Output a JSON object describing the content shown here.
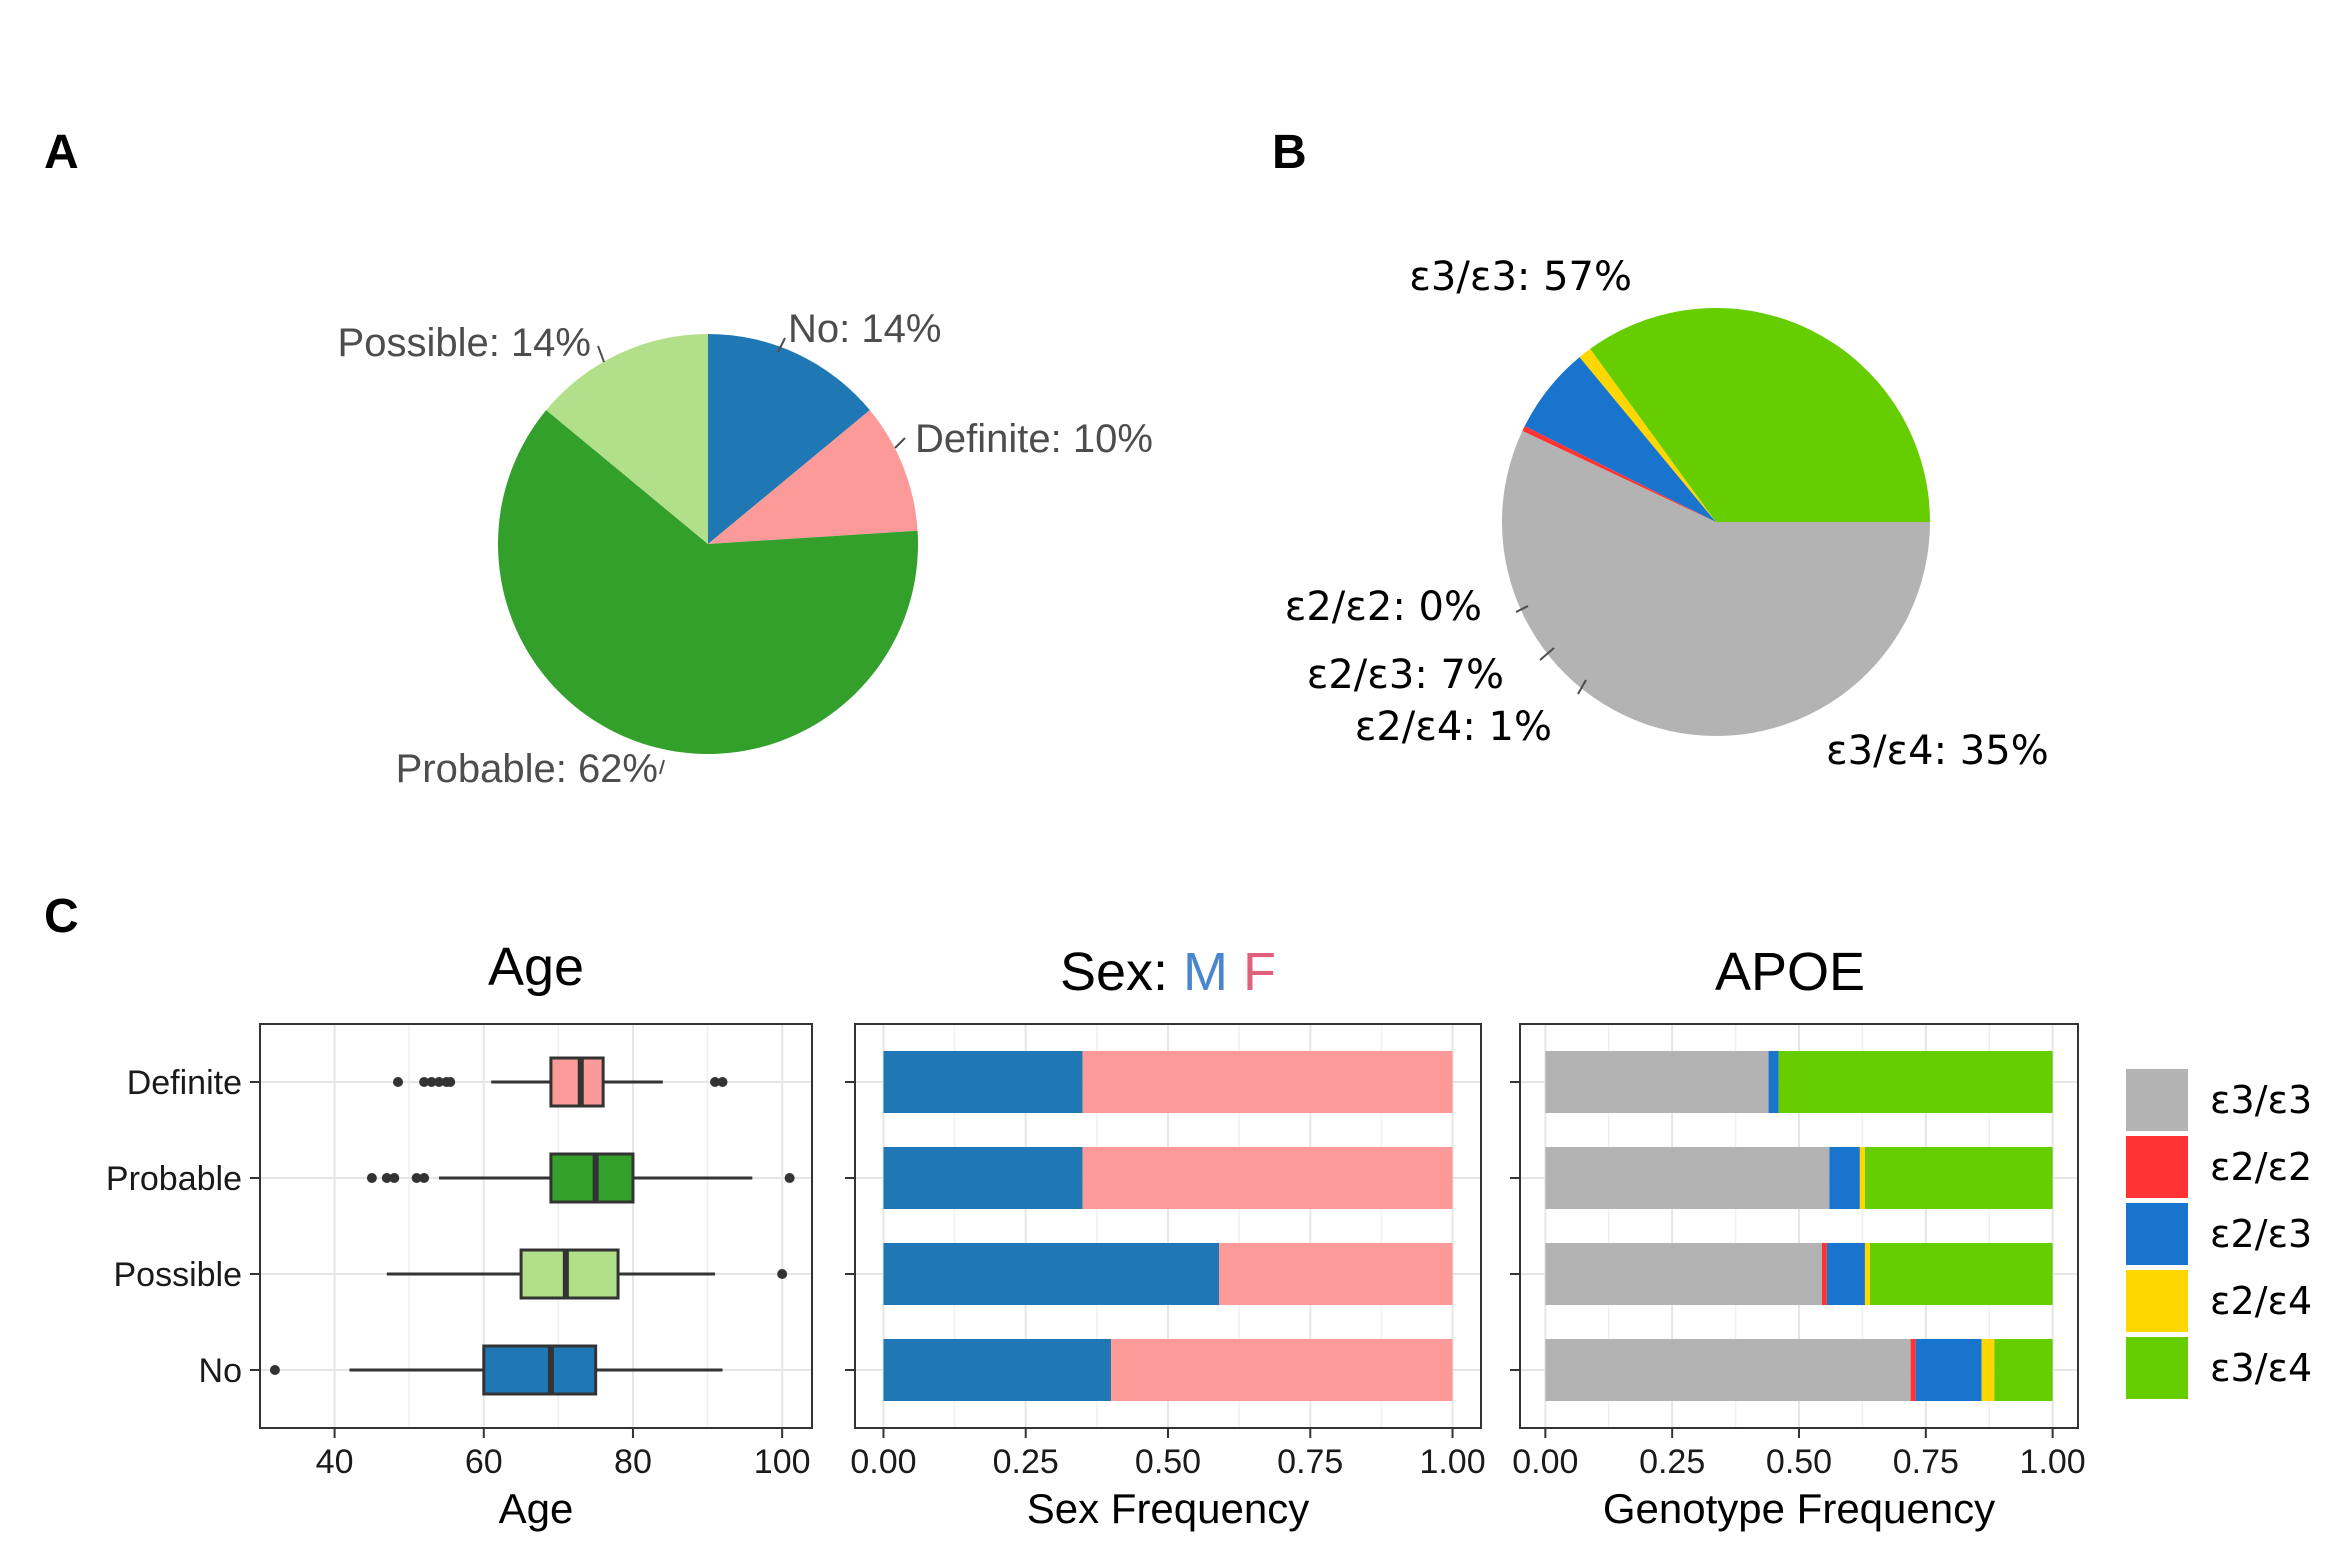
{
  "panels": {
    "a": "A",
    "b": "B",
    "c": "C"
  },
  "colors": {
    "Definite": "#FB9A99",
    "Probable": "#33A02C",
    "Possible": "#B2DF8A",
    "No": "#1F78B4",
    "M": "#1F78B4",
    "F": "#FB9A99",
    "sex_title_M": "#4A86D0",
    "sex_title_F": "#E0607E",
    "e3e3": "#B3B3B3",
    "e2e2": "#FF3333",
    "e2e3": "#1874CD",
    "e2e4": "#FFD700",
    "e3e4": "#66CD00"
  },
  "chart_data": [
    {
      "type": "pie",
      "panel": "A",
      "labels": [
        "No: 14%",
        "Definite: 10%",
        "Probable: 62%",
        "Possible: 14%"
      ],
      "slices": [
        {
          "name": "No",
          "value": 14,
          "color": "#1F78B4"
        },
        {
          "name": "Definite",
          "value": 10,
          "color": "#FB9A99"
        },
        {
          "name": "Probable",
          "value": 62,
          "color": "#33A02C"
        },
        {
          "name": "Possible",
          "value": 14,
          "color": "#B2DF8A"
        }
      ]
    },
    {
      "type": "pie",
      "panel": "B",
      "labels": [
        "ε3/ε3: 57%",
        "ε2/ε2: 0%",
        "ε2/ε3: 7%",
        "ε2/ε4: 1%",
        "ε3/ε4: 35%"
      ],
      "slices": [
        {
          "name": "ε3/ε3",
          "value": 57,
          "color": "#B3B3B3"
        },
        {
          "name": "ε2/ε2",
          "value": 0.4,
          "color": "#FF3333"
        },
        {
          "name": "ε2/ε3",
          "value": 6.6,
          "color": "#1874CD"
        },
        {
          "name": "ε2/ε4",
          "value": 1,
          "color": "#FFD700"
        },
        {
          "name": "ε3/ε4",
          "value": 35,
          "color": "#66CD00"
        }
      ]
    },
    {
      "type": "box",
      "panel": "C",
      "title": "Age",
      "xlabel": "Age",
      "xlim": [
        30,
        104
      ],
      "xticks": [
        40,
        60,
        80,
        100
      ],
      "xtick_labels": [
        "40",
        "60",
        "80",
        "100"
      ],
      "categories": [
        "Definite",
        "Probable",
        "Possible",
        "No"
      ],
      "boxes": [
        {
          "name": "Definite",
          "whisker_low": 61,
          "q1": 69,
          "median": 73,
          "q3": 76,
          "whisker_high": 84,
          "outliers": [
            48.5,
            52,
            53,
            54,
            55,
            55.5,
            91,
            92
          ],
          "color": "#FB9A99"
        },
        {
          "name": "Probable",
          "whisker_low": 54,
          "q1": 69,
          "median": 75,
          "q3": 80,
          "whisker_high": 96,
          "outliers": [
            45,
            47,
            48,
            51,
            52,
            101
          ],
          "color": "#33A02C"
        },
        {
          "name": "Possible",
          "whisker_low": 47,
          "q1": 65,
          "median": 71,
          "q3": 78,
          "whisker_high": 91,
          "outliers": [
            100
          ],
          "color": "#B2DF8A"
        },
        {
          "name": "No",
          "whisker_low": 42,
          "q1": 60,
          "median": 69,
          "q3": 75,
          "whisker_high": 92,
          "outliers": [
            32
          ],
          "color": "#1F78B4"
        }
      ]
    },
    {
      "type": "bar",
      "stacked": true,
      "orientation": "horizontal",
      "panel": "C",
      "title_prefix": "Sex: ",
      "title_M": "M",
      "title_F": "F",
      "xlabel": "Sex Frequency",
      "xlim": [
        -0.05,
        1.05
      ],
      "xticks": [
        0,
        0.25,
        0.5,
        0.75,
        1
      ],
      "xtick_labels": [
        "0.00",
        "0.25",
        "0.50",
        "0.75",
        "1.00"
      ],
      "categories": [
        "Definite",
        "Probable",
        "Possible",
        "No"
      ],
      "series": [
        {
          "name": "M",
          "values": [
            0.35,
            0.35,
            0.59,
            0.4
          ]
        },
        {
          "name": "F",
          "values": [
            0.65,
            0.65,
            0.41,
            0.6
          ]
        }
      ]
    },
    {
      "type": "bar",
      "stacked": true,
      "orientation": "horizontal",
      "panel": "C",
      "title": "APOE",
      "xlabel": "Genotype Frequency",
      "xlim": [
        -0.05,
        1.05
      ],
      "xticks": [
        0,
        0.25,
        0.5,
        0.75,
        1
      ],
      "xtick_labels": [
        "0.00",
        "0.25",
        "0.50",
        "0.75",
        "1.00"
      ],
      "categories": [
        "Definite",
        "Probable",
        "Possible",
        "No"
      ],
      "series": [
        {
          "name": "ε3/ε3",
          "values": [
            0.44,
            0.56,
            0.545,
            0.72
          ]
        },
        {
          "name": "ε2/ε2",
          "values": [
            0,
            0,
            0.01,
            0.01
          ]
        },
        {
          "name": "ε2/ε3",
          "values": [
            0.02,
            0.06,
            0.075,
            0.13
          ]
        },
        {
          "name": "ε2/ε4",
          "values": [
            0,
            0.01,
            0.01,
            0.025
          ]
        },
        {
          "name": "ε3/ε4",
          "values": [
            0.54,
            0.37,
            0.36,
            0.115
          ]
        }
      ],
      "legend": {
        "placement": "right",
        "entries": [
          "ε3/ε3",
          "ε2/ε2",
          "ε2/ε3",
          "ε2/ε4",
          "ε3/ε4"
        ]
      }
    }
  ]
}
